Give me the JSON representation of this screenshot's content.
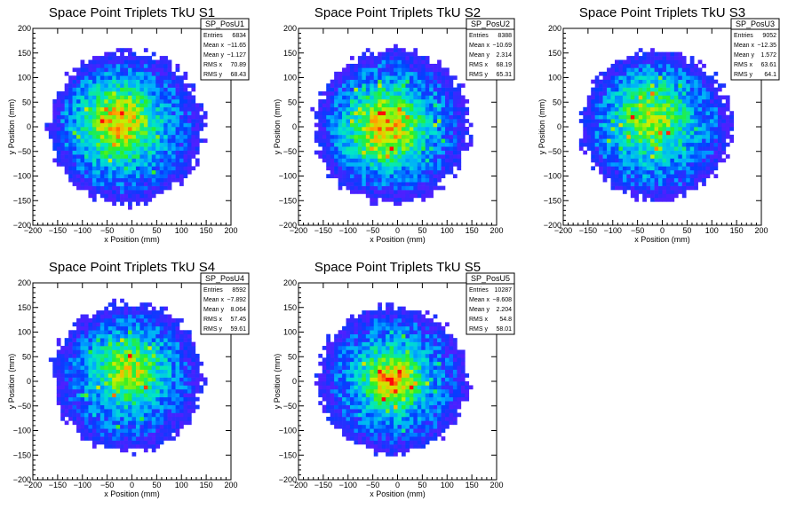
{
  "chart_data": [
    {
      "type": "heatmap",
      "title": "Space Point Triplets TkU S1",
      "xlabel": "x Position (mm)",
      "ylabel": "y Position (mm)",
      "xlim": [
        -200,
        200
      ],
      "ylim": [
        -200,
        200
      ],
      "x_ticks": [
        "−200",
        "−150",
        "−100",
        "−50",
        "0",
        "50",
        "100",
        "150",
        "200"
      ],
      "y_ticks": [
        "−200",
        "−150",
        "−100",
        "−50",
        "0",
        "50",
        "100",
        "150",
        "200"
      ],
      "stats": {
        "name": "SP_PosU1",
        "rows": [
          {
            "label": "Entries",
            "value": "6834"
          },
          {
            "label": "Mean x",
            "value": "−11.65"
          },
          {
            "label": "Mean y",
            "value": "−1.127"
          },
          {
            "label": "RMS x",
            "value": "70.89"
          },
          {
            "label": "RMS y",
            "value": "68.43"
          }
        ]
      },
      "distribution": {
        "center_x": -12,
        "center_y": -1,
        "radius": 155,
        "peak_x": -30,
        "peak_y": 10,
        "spread": 55,
        "hot": 1.0
      }
    },
    {
      "type": "heatmap",
      "title": "Space Point Triplets TkU S2",
      "xlabel": "x Position (mm)",
      "ylabel": "y Position (mm)",
      "xlim": [
        -200,
        200
      ],
      "ylim": [
        -200,
        200
      ],
      "x_ticks": [
        "−200",
        "−150",
        "−100",
        "−50",
        "0",
        "50",
        "100",
        "150",
        "200"
      ],
      "y_ticks": [
        "−200",
        "−150",
        "−100",
        "−50",
        "0",
        "50",
        "100",
        "150",
        "200"
      ],
      "stats": {
        "name": "SP_PosU2",
        "rows": [
          {
            "label": "Entries",
            "value": "8388"
          },
          {
            "label": "Mean x",
            "value": "−10.69"
          },
          {
            "label": "Mean y",
            "value": "2.314"
          },
          {
            "label": "RMS x",
            "value": "68.19"
          },
          {
            "label": "RMS y",
            "value": "65.31"
          }
        ]
      },
      "distribution": {
        "center_x": -10,
        "center_y": 2,
        "radius": 155,
        "peak_x": -25,
        "peak_y": 0,
        "spread": 55,
        "hot": 1.0
      }
    },
    {
      "type": "heatmap",
      "title": "Space Point Triplets TkU S3",
      "xlabel": "x Position (mm)",
      "ylabel": "y Position (mm)",
      "xlim": [
        -200,
        200
      ],
      "ylim": [
        -200,
        200
      ],
      "x_ticks": [
        "−200",
        "−150",
        "−100",
        "−50",
        "0",
        "50",
        "100",
        "150",
        "200"
      ],
      "y_ticks": [
        "−200",
        "−150",
        "−100",
        "−50",
        "0",
        "50",
        "100",
        "150",
        "200"
      ],
      "stats": {
        "name": "SP_PosU3",
        "rows": [
          {
            "label": "Entries",
            "value": "9052"
          },
          {
            "label": "Mean x",
            "value": "−12.35"
          },
          {
            "label": "Mean y",
            "value": "1.572"
          },
          {
            "label": "RMS x",
            "value": "63.61"
          },
          {
            "label": "RMS y",
            "value": "64.1"
          }
        ]
      },
      "distribution": {
        "center_x": -12,
        "center_y": 2,
        "radius": 150,
        "peak_x": -25,
        "peak_y": 20,
        "spread": 60,
        "hot": 0.7
      }
    },
    {
      "type": "heatmap",
      "title": "Space Point Triplets TkU S4",
      "xlabel": "x Position (mm)",
      "ylabel": "y Position (mm)",
      "xlim": [
        -200,
        200
      ],
      "ylim": [
        -200,
        200
      ],
      "x_ticks": [
        "−200",
        "−150",
        "−100",
        "−50",
        "0",
        "50",
        "100",
        "150",
        "200"
      ],
      "y_ticks": [
        "−200",
        "−150",
        "−100",
        "−50",
        "0",
        "50",
        "100",
        "150",
        "200"
      ],
      "stats": {
        "name": "SP_PosU4",
        "rows": [
          {
            "label": "Entries",
            "value": "8592"
          },
          {
            "label": "Mean x",
            "value": "−7.892"
          },
          {
            "label": "Mean y",
            "value": "8.064"
          },
          {
            "label": "RMS x",
            "value": "57.45"
          },
          {
            "label": "RMS y",
            "value": "59.61"
          }
        ]
      },
      "distribution": {
        "center_x": -8,
        "center_y": 8,
        "radius": 150,
        "peak_x": -5,
        "peak_y": 25,
        "spread": 50,
        "hot": 0.8
      }
    },
    {
      "type": "heatmap",
      "title": "Space Point Triplets TkU S5",
      "xlabel": "x Position (mm)",
      "ylabel": "y Position (mm)",
      "xlim": [
        -200,
        200
      ],
      "ylim": [
        -200,
        200
      ],
      "x_ticks": [
        "−200",
        "−150",
        "−100",
        "−50",
        "0",
        "50",
        "100",
        "150",
        "200"
      ],
      "y_ticks": [
        "−200",
        "−150",
        "−100",
        "−50",
        "0",
        "50",
        "100",
        "150",
        "200"
      ],
      "stats": {
        "name": "SP_PosU5",
        "rows": [
          {
            "label": "Entries",
            "value": "10287"
          },
          {
            "label": "Mean x",
            "value": "−8.608"
          },
          {
            "label": "Mean y",
            "value": "2.204"
          },
          {
            "label": "RMS x",
            "value": "54.8"
          },
          {
            "label": "RMS y",
            "value": "58.01"
          }
        ]
      },
      "distribution": {
        "center_x": -9,
        "center_y": 2,
        "radius": 150,
        "peak_x": -10,
        "peak_y": 5,
        "spread": 45,
        "hot": 1.0
      }
    }
  ]
}
